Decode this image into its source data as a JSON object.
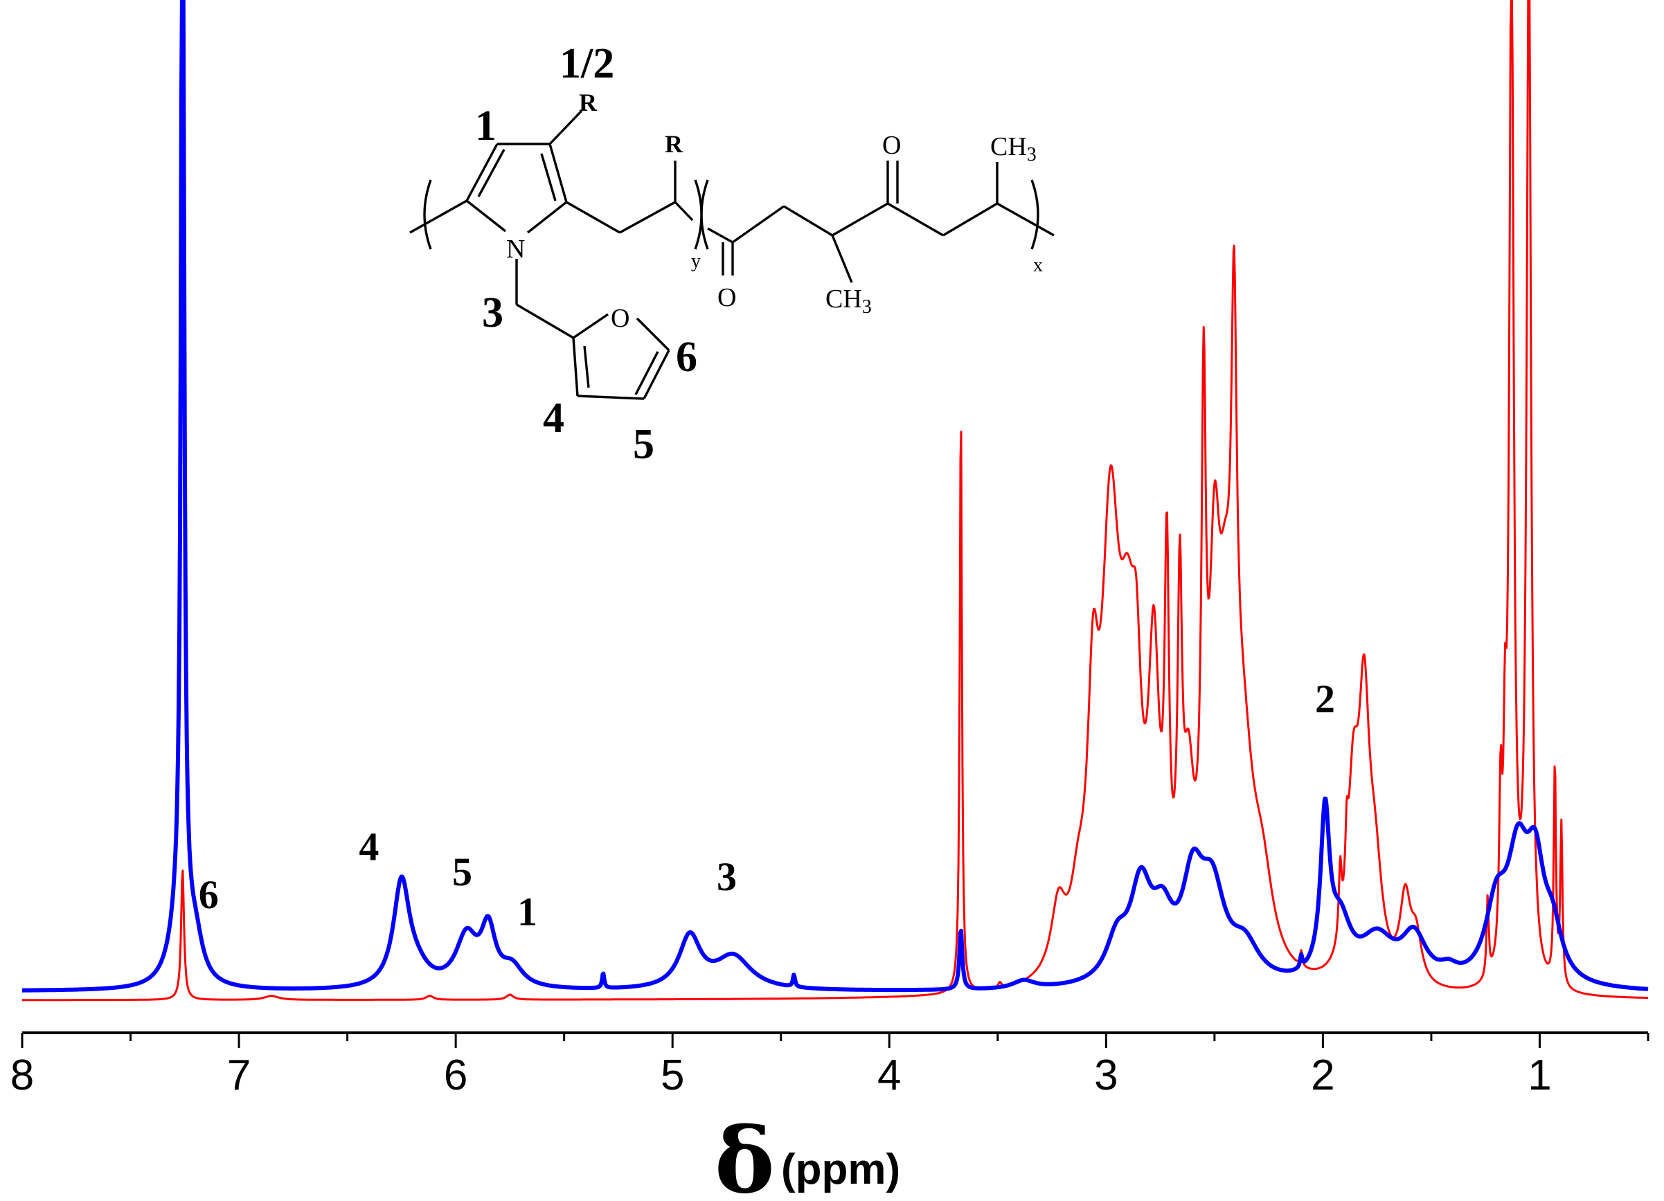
{
  "chart_data": {
    "type": "line",
    "title": "",
    "xlabel_symbol": "δ",
    "xlabel_unit": "(ppm)",
    "ylabel": "",
    "xlim": [
      8.0,
      0.5
    ],
    "x_axis_reversed": true,
    "y_axis_visible": false,
    "grid": false,
    "legend": "none",
    "ticks": [
      {
        "value": 8,
        "label": "8"
      },
      {
        "value": 7,
        "label": "7"
      },
      {
        "value": 6,
        "label": "6"
      },
      {
        "value": 5,
        "label": "5"
      },
      {
        "value": 4,
        "label": "4"
      },
      {
        "value": 3,
        "label": "3"
      },
      {
        "value": 2,
        "label": "2"
      },
      {
        "value": 1,
        "label": "1"
      }
    ],
    "minor_tick_step": 0.5,
    "y_scale_max": 1.0,
    "series": [
      {
        "color": "#ff0000",
        "baseline": 0.0,
        "peaks": [
          {
            "x": 7.26,
            "height": 0.13,
            "width": 0.008
          },
          {
            "x": 6.85,
            "height": 0.004,
            "width": 0.04
          },
          {
            "x": 6.12,
            "height": 0.004,
            "width": 0.02
          },
          {
            "x": 5.75,
            "height": 0.005,
            "width": 0.02
          },
          {
            "x": 3.67,
            "height": 0.586,
            "width": 0.006
          },
          {
            "x": 3.49,
            "height": 0.006,
            "width": 0.01
          },
          {
            "x": 3.22,
            "height": 0.066,
            "width": 0.04
          },
          {
            "x": 3.13,
            "height": 0.055,
            "width": 0.04
          },
          {
            "x": 3.06,
            "height": 0.22,
            "width": 0.03
          },
          {
            "x": 2.98,
            "height": 0.41,
            "width": 0.05
          },
          {
            "x": 2.9,
            "height": 0.25,
            "width": 0.05
          },
          {
            "x": 2.86,
            "height": 0.15,
            "width": 0.025
          },
          {
            "x": 2.78,
            "height": 0.28,
            "width": 0.03
          },
          {
            "x": 2.72,
            "height": 0.35,
            "width": 0.012
          },
          {
            "x": 2.66,
            "height": 0.32,
            "width": 0.012
          },
          {
            "x": 2.62,
            "height": 0.15,
            "width": 0.03
          },
          {
            "x": 2.55,
            "height": 0.48,
            "width": 0.012
          },
          {
            "x": 2.5,
            "height": 0.32,
            "width": 0.03
          },
          {
            "x": 2.45,
            "height": 0.24,
            "width": 0.04
          },
          {
            "x": 2.41,
            "height": 0.44,
            "width": 0.015
          },
          {
            "x": 2.37,
            "height": 0.19,
            "width": 0.06
          },
          {
            "x": 2.28,
            "height": 0.08,
            "width": 0.06
          },
          {
            "x": 2.1,
            "height": 0.015,
            "width": 0.006
          },
          {
            "x": 1.92,
            "height": 0.07,
            "width": 0.008
          },
          {
            "x": 1.89,
            "height": 0.06,
            "width": 0.008
          },
          {
            "x": 1.86,
            "height": 0.17,
            "width": 0.03
          },
          {
            "x": 1.81,
            "height": 0.25,
            "width": 0.03
          },
          {
            "x": 1.76,
            "height": 0.1,
            "width": 0.04
          },
          {
            "x": 1.62,
            "height": 0.082,
            "width": 0.03
          },
          {
            "x": 1.57,
            "height": 0.045,
            "width": 0.03
          },
          {
            "x": 1.24,
            "height": 0.08,
            "width": 0.006
          },
          {
            "x": 1.18,
            "height": 0.16,
            "width": 0.008
          },
          {
            "x": 1.16,
            "height": 0.17,
            "width": 0.008
          },
          {
            "x": 1.13,
            "height": 1.05,
            "width": 0.012
          },
          {
            "x": 1.05,
            "height": 1.05,
            "width": 0.012
          },
          {
            "x": 0.93,
            "height": 0.22,
            "width": 0.006
          },
          {
            "x": 0.9,
            "height": 0.16,
            "width": 0.006
          }
        ]
      },
      {
        "color": "#0000ff",
        "baseline": 0.007,
        "baseline_slope": 0.002,
        "peaks": [
          {
            "x": 7.26,
            "height": 1.2,
            "width": 0.008
          },
          {
            "x": 7.27,
            "height": 0.08,
            "width": 0.05
          },
          {
            "x": 7.2,
            "height": 0.035,
            "width": 0.04
          },
          {
            "x": 6.25,
            "height": 0.104,
            "width": 0.045
          },
          {
            "x": 6.18,
            "height": 0.015,
            "width": 0.07
          },
          {
            "x": 5.95,
            "height": 0.05,
            "width": 0.06
          },
          {
            "x": 5.85,
            "height": 0.055,
            "width": 0.04
          },
          {
            "x": 5.74,
            "height": 0.02,
            "width": 0.06
          },
          {
            "x": 5.32,
            "height": 0.015,
            "width": 0.006
          },
          {
            "x": 4.92,
            "height": 0.052,
            "width": 0.06
          },
          {
            "x": 4.72,
            "height": 0.033,
            "width": 0.1
          },
          {
            "x": 4.44,
            "height": 0.012,
            "width": 0.006
          },
          {
            "x": 3.67,
            "height": 0.06,
            "width": 0.008
          },
          {
            "x": 3.38,
            "height": 0.008,
            "width": 0.06
          },
          {
            "x": 2.95,
            "height": 0.04,
            "width": 0.06
          },
          {
            "x": 2.84,
            "height": 0.09,
            "width": 0.06
          },
          {
            "x": 2.74,
            "height": 0.055,
            "width": 0.06
          },
          {
            "x": 2.6,
            "height": 0.09,
            "width": 0.06
          },
          {
            "x": 2.51,
            "height": 0.085,
            "width": 0.07
          },
          {
            "x": 2.36,
            "height": 0.035,
            "width": 0.08
          },
          {
            "x": 2.1,
            "height": 0.012,
            "width": 0.006
          },
          {
            "x": 1.99,
            "height": 0.157,
            "width": 0.025
          },
          {
            "x": 1.92,
            "height": 0.055,
            "width": 0.06
          },
          {
            "x": 1.75,
            "height": 0.045,
            "width": 0.1
          },
          {
            "x": 1.58,
            "height": 0.045,
            "width": 0.07
          },
          {
            "x": 1.42,
            "height": 0.01,
            "width": 0.05
          },
          {
            "x": 1.2,
            "height": 0.07,
            "width": 0.06
          },
          {
            "x": 1.1,
            "height": 0.115,
            "width": 0.06
          },
          {
            "x": 1.02,
            "height": 0.1,
            "width": 0.05
          },
          {
            "x": 0.94,
            "height": 0.045,
            "width": 0.05
          }
        ]
      }
    ],
    "annotations": [
      {
        "text": "6",
        "x": 7.14,
        "y_frac": 0.092
      },
      {
        "text": "4",
        "x": 6.4,
        "y_frac": 0.14
      },
      {
        "text": "5",
        "x": 5.97,
        "y_frac": 0.115
      },
      {
        "text": "1",
        "x": 5.67,
        "y_frac": 0.075
      },
      {
        "text": "3",
        "x": 4.75,
        "y_frac": 0.11
      },
      {
        "text": "2",
        "x": 1.99,
        "y_frac": 0.288
      }
    ]
  },
  "structure": {
    "atom_N": "N",
    "atom_O_furan": "O",
    "atom_O_carbonyl_left": "O",
    "atom_O_carbonyl_right": "O",
    "label_R_ring": "R",
    "label_R_chain": "R",
    "label_CH": "CH",
    "label_sub3": "3",
    "sub_y": "y",
    "sub_x": "x",
    "num_1_2": "1/2",
    "num_1": "1",
    "num_3": "3",
    "num_4": "4",
    "num_5": "5",
    "num_6": "6"
  }
}
